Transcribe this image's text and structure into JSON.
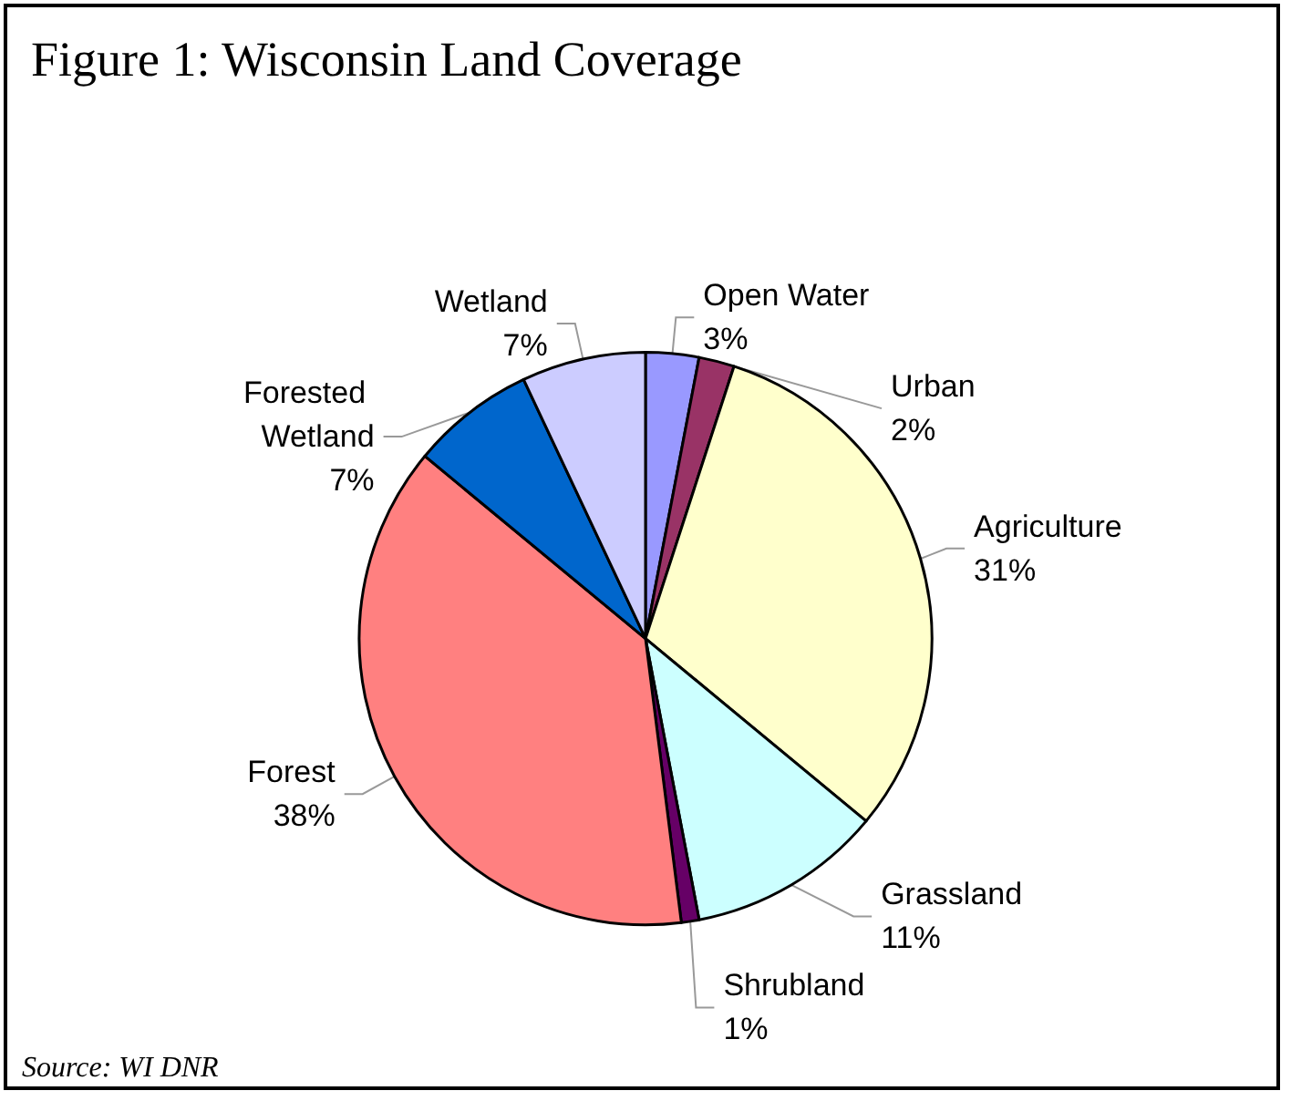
{
  "chart_data": {
    "type": "pie",
    "title": "Figure 1: Wisconsin Land Coverage",
    "categories": [
      "Open Water",
      "Urban",
      "Agriculture",
      "Grassland",
      "Shrubland",
      "Forest",
      "Forested Wetland",
      "Wetland"
    ],
    "values": [
      3,
      2,
      31,
      11,
      1,
      38,
      7,
      7
    ],
    "value_labels": [
      "3%",
      "2%",
      "31%",
      "11%",
      "1%",
      "38%",
      "7%",
      "7%"
    ],
    "colors": [
      "#9999ff",
      "#993366",
      "#ffffcc",
      "#ccffff",
      "#660066",
      "#ff8080",
      "#0066cc",
      "#ccccff"
    ],
    "annotations": [
      "Source: WI DNR"
    ],
    "legend": false
  }
}
